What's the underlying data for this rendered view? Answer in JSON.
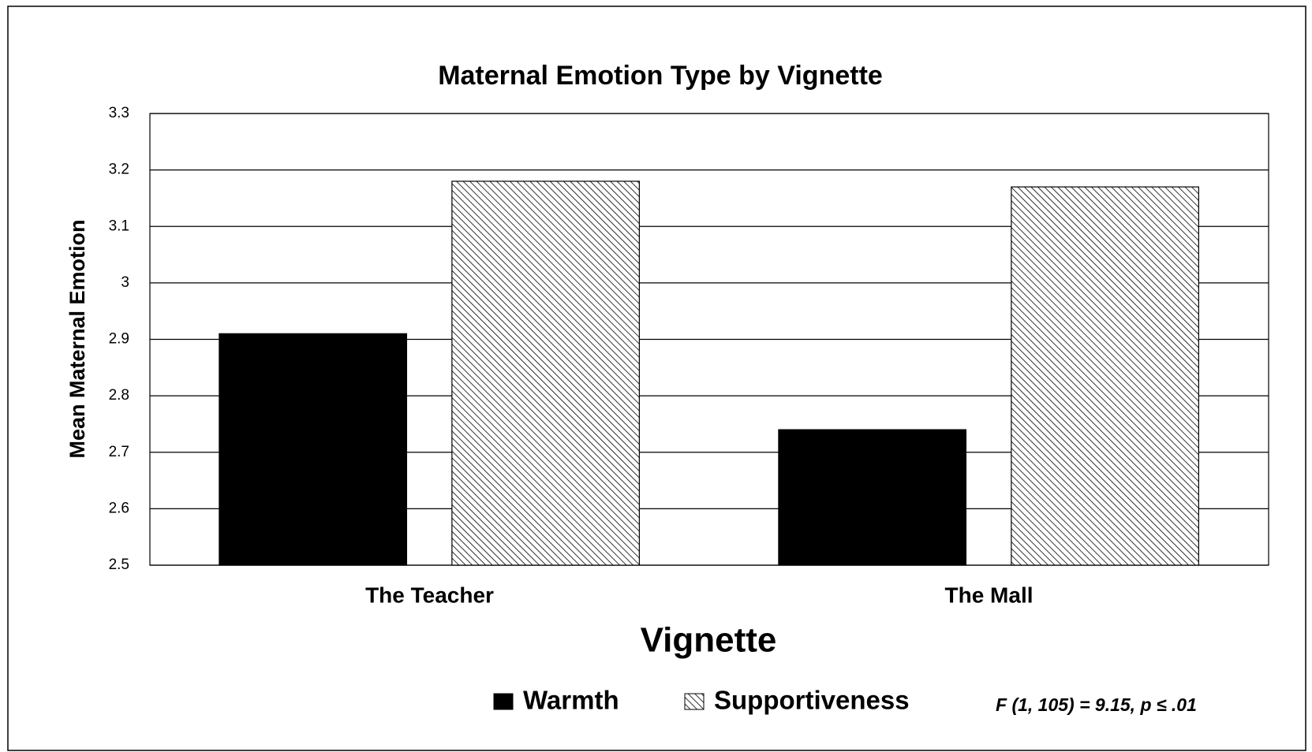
{
  "chart_data": {
    "type": "bar",
    "title": "Maternal Emotion Type by Vignette",
    "y_label": "Mean Maternal Emotion",
    "x_label": "Vignette",
    "categories": [
      "The Teacher",
      "The Mall"
    ],
    "series": [
      {
        "name": "Warmth",
        "color": "#000000",
        "values": [
          2.91,
          2.74
        ]
      },
      {
        "name": "Supportiveness",
        "color": "hatch",
        "values": [
          3.18,
          3.17
        ]
      }
    ],
    "ylim": [
      2.5,
      3.3
    ],
    "yticks": [
      2.5,
      2.6,
      2.7,
      2.8,
      2.9,
      3,
      3.1,
      3.2,
      3.3
    ],
    "grid": true,
    "legend": "bottom",
    "annotation": "F (1, 105) = 9.15, p ≤ .01"
  }
}
